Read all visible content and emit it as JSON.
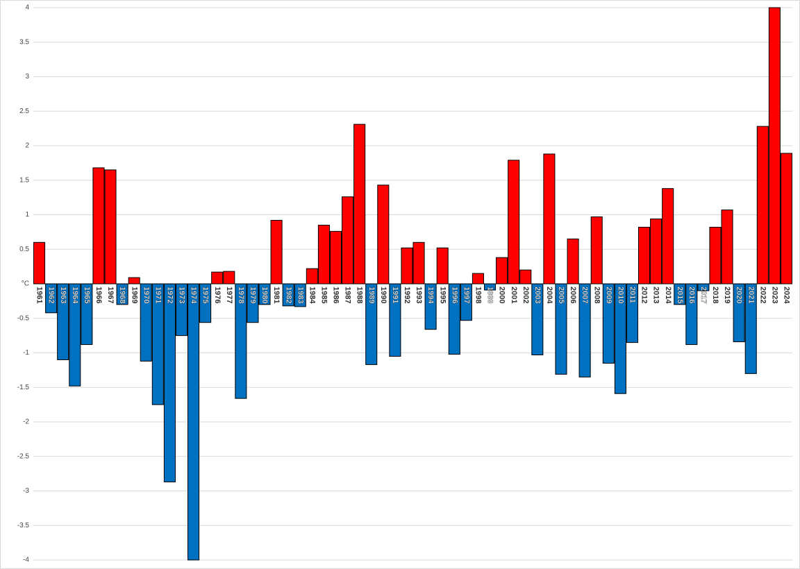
{
  "chart_data": {
    "type": "bar",
    "categories": [
      "1961",
      "1962",
      "1963",
      "1964",
      "1965",
      "1966",
      "1967",
      "1968",
      "1969",
      "1970",
      "1971",
      "1972",
      "1973",
      "1974",
      "1975",
      "1976",
      "1977",
      "1978",
      "1979",
      "1980",
      "1981",
      "1982",
      "1983",
      "1984",
      "1985",
      "1986",
      "1987",
      "1988",
      "1989",
      "1990",
      "1991",
      "1992",
      "1993",
      "1994",
      "1995",
      "1996",
      "1997",
      "1998",
      "1999",
      "2000",
      "2001",
      "2002",
      "2003",
      "2004",
      "2005",
      "2006",
      "2007",
      "2008",
      "2009",
      "2010",
      "2011",
      "2012",
      "2013",
      "2014",
      "2015",
      "2016",
      "2017",
      "2018",
      "2019",
      "2020",
      "2021",
      "2022",
      "2023",
      "2024"
    ],
    "values": [
      0.6,
      -0.42,
      -1.1,
      -1.48,
      -0.88,
      1.68,
      1.65,
      -0.3,
      0.09,
      -1.12,
      -1.75,
      -2.87,
      -0.75,
      -4.0,
      -0.56,
      0.17,
      0.18,
      -1.66,
      -0.56,
      -0.3,
      0.92,
      -0.32,
      -0.33,
      0.22,
      0.85,
      0.76,
      1.26,
      2.31,
      -1.17,
      1.43,
      -1.05,
      0.52,
      0.6,
      -0.66,
      0.52,
      -1.02,
      -0.53,
      0.15,
      -0.09,
      0.38,
      1.79,
      0.2,
      -1.03,
      1.88,
      -1.31,
      0.65,
      -1.35,
      0.97,
      -1.15,
      -1.59,
      -0.85,
      0.82,
      0.94,
      1.38,
      -0.3,
      -0.88,
      -0.1,
      0.82,
      1.07,
      -0.84,
      -1.3,
      2.28,
      4.0,
      1.89
    ],
    "positive_color": "#ff0000",
    "negative_color": "#0070c0",
    "ylim": [
      -4,
      4
    ],
    "yticks": [
      -4,
      -3.5,
      -3,
      -2.5,
      -2,
      -1.5,
      -1,
      -0.5,
      {
        "value": 0,
        "label": "°C"
      },
      0.5,
      1,
      1.5,
      2,
      2.5,
      3,
      3.5,
      4
    ],
    "grid": true
  }
}
